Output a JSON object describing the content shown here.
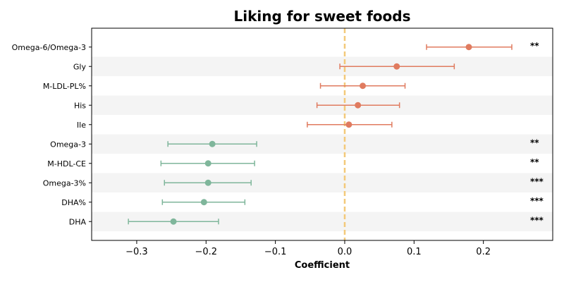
{
  "chart_data": {
    "type": "scatter",
    "title": "Liking for sweet foods",
    "xlabel": "Coefficient",
    "ylabel": "",
    "xlim": [
      -0.365,
      0.3
    ],
    "xticks": [
      -0.3,
      -0.2,
      -0.1,
      0.0,
      0.1,
      0.2
    ],
    "xtick_labels": [
      "−0.3",
      "−0.2",
      "−0.1",
      "0.0",
      "0.1",
      "0.2"
    ],
    "reference_line": 0,
    "grid": false,
    "row_banding": true,
    "colors": {
      "positive": "#e07b5f",
      "negative": "#7fb69b",
      "reference_line": "#f3c97a",
      "band": "#f4f4f4"
    },
    "points": [
      {
        "label": "Omega-6/Omega-3",
        "estimate": 0.179,
        "ci_low": 0.118,
        "ci_high": 0.241,
        "significance": "**"
      },
      {
        "label": "Gly",
        "estimate": 0.075,
        "ci_low": -0.007,
        "ci_high": 0.158,
        "significance": ""
      },
      {
        "label": "M-LDL-PL%",
        "estimate": 0.026,
        "ci_low": -0.035,
        "ci_high": 0.087,
        "significance": ""
      },
      {
        "label": "His",
        "estimate": 0.019,
        "ci_low": -0.04,
        "ci_high": 0.079,
        "significance": ""
      },
      {
        "label": "Ile",
        "estimate": 0.006,
        "ci_low": -0.054,
        "ci_high": 0.068,
        "significance": ""
      },
      {
        "label": "Omega-3",
        "estimate": -0.191,
        "ci_low": -0.255,
        "ci_high": -0.127,
        "significance": "**"
      },
      {
        "label": "M-HDL-CE",
        "estimate": -0.197,
        "ci_low": -0.265,
        "ci_high": -0.13,
        "significance": "**"
      },
      {
        "label": "Omega-3%",
        "estimate": -0.197,
        "ci_low": -0.26,
        "ci_high": -0.135,
        "significance": "***"
      },
      {
        "label": "DHA%",
        "estimate": -0.203,
        "ci_low": -0.263,
        "ci_high": -0.144,
        "significance": "***"
      },
      {
        "label": "DHA",
        "estimate": -0.247,
        "ci_low": -0.312,
        "ci_high": -0.182,
        "significance": "***"
      }
    ]
  }
}
